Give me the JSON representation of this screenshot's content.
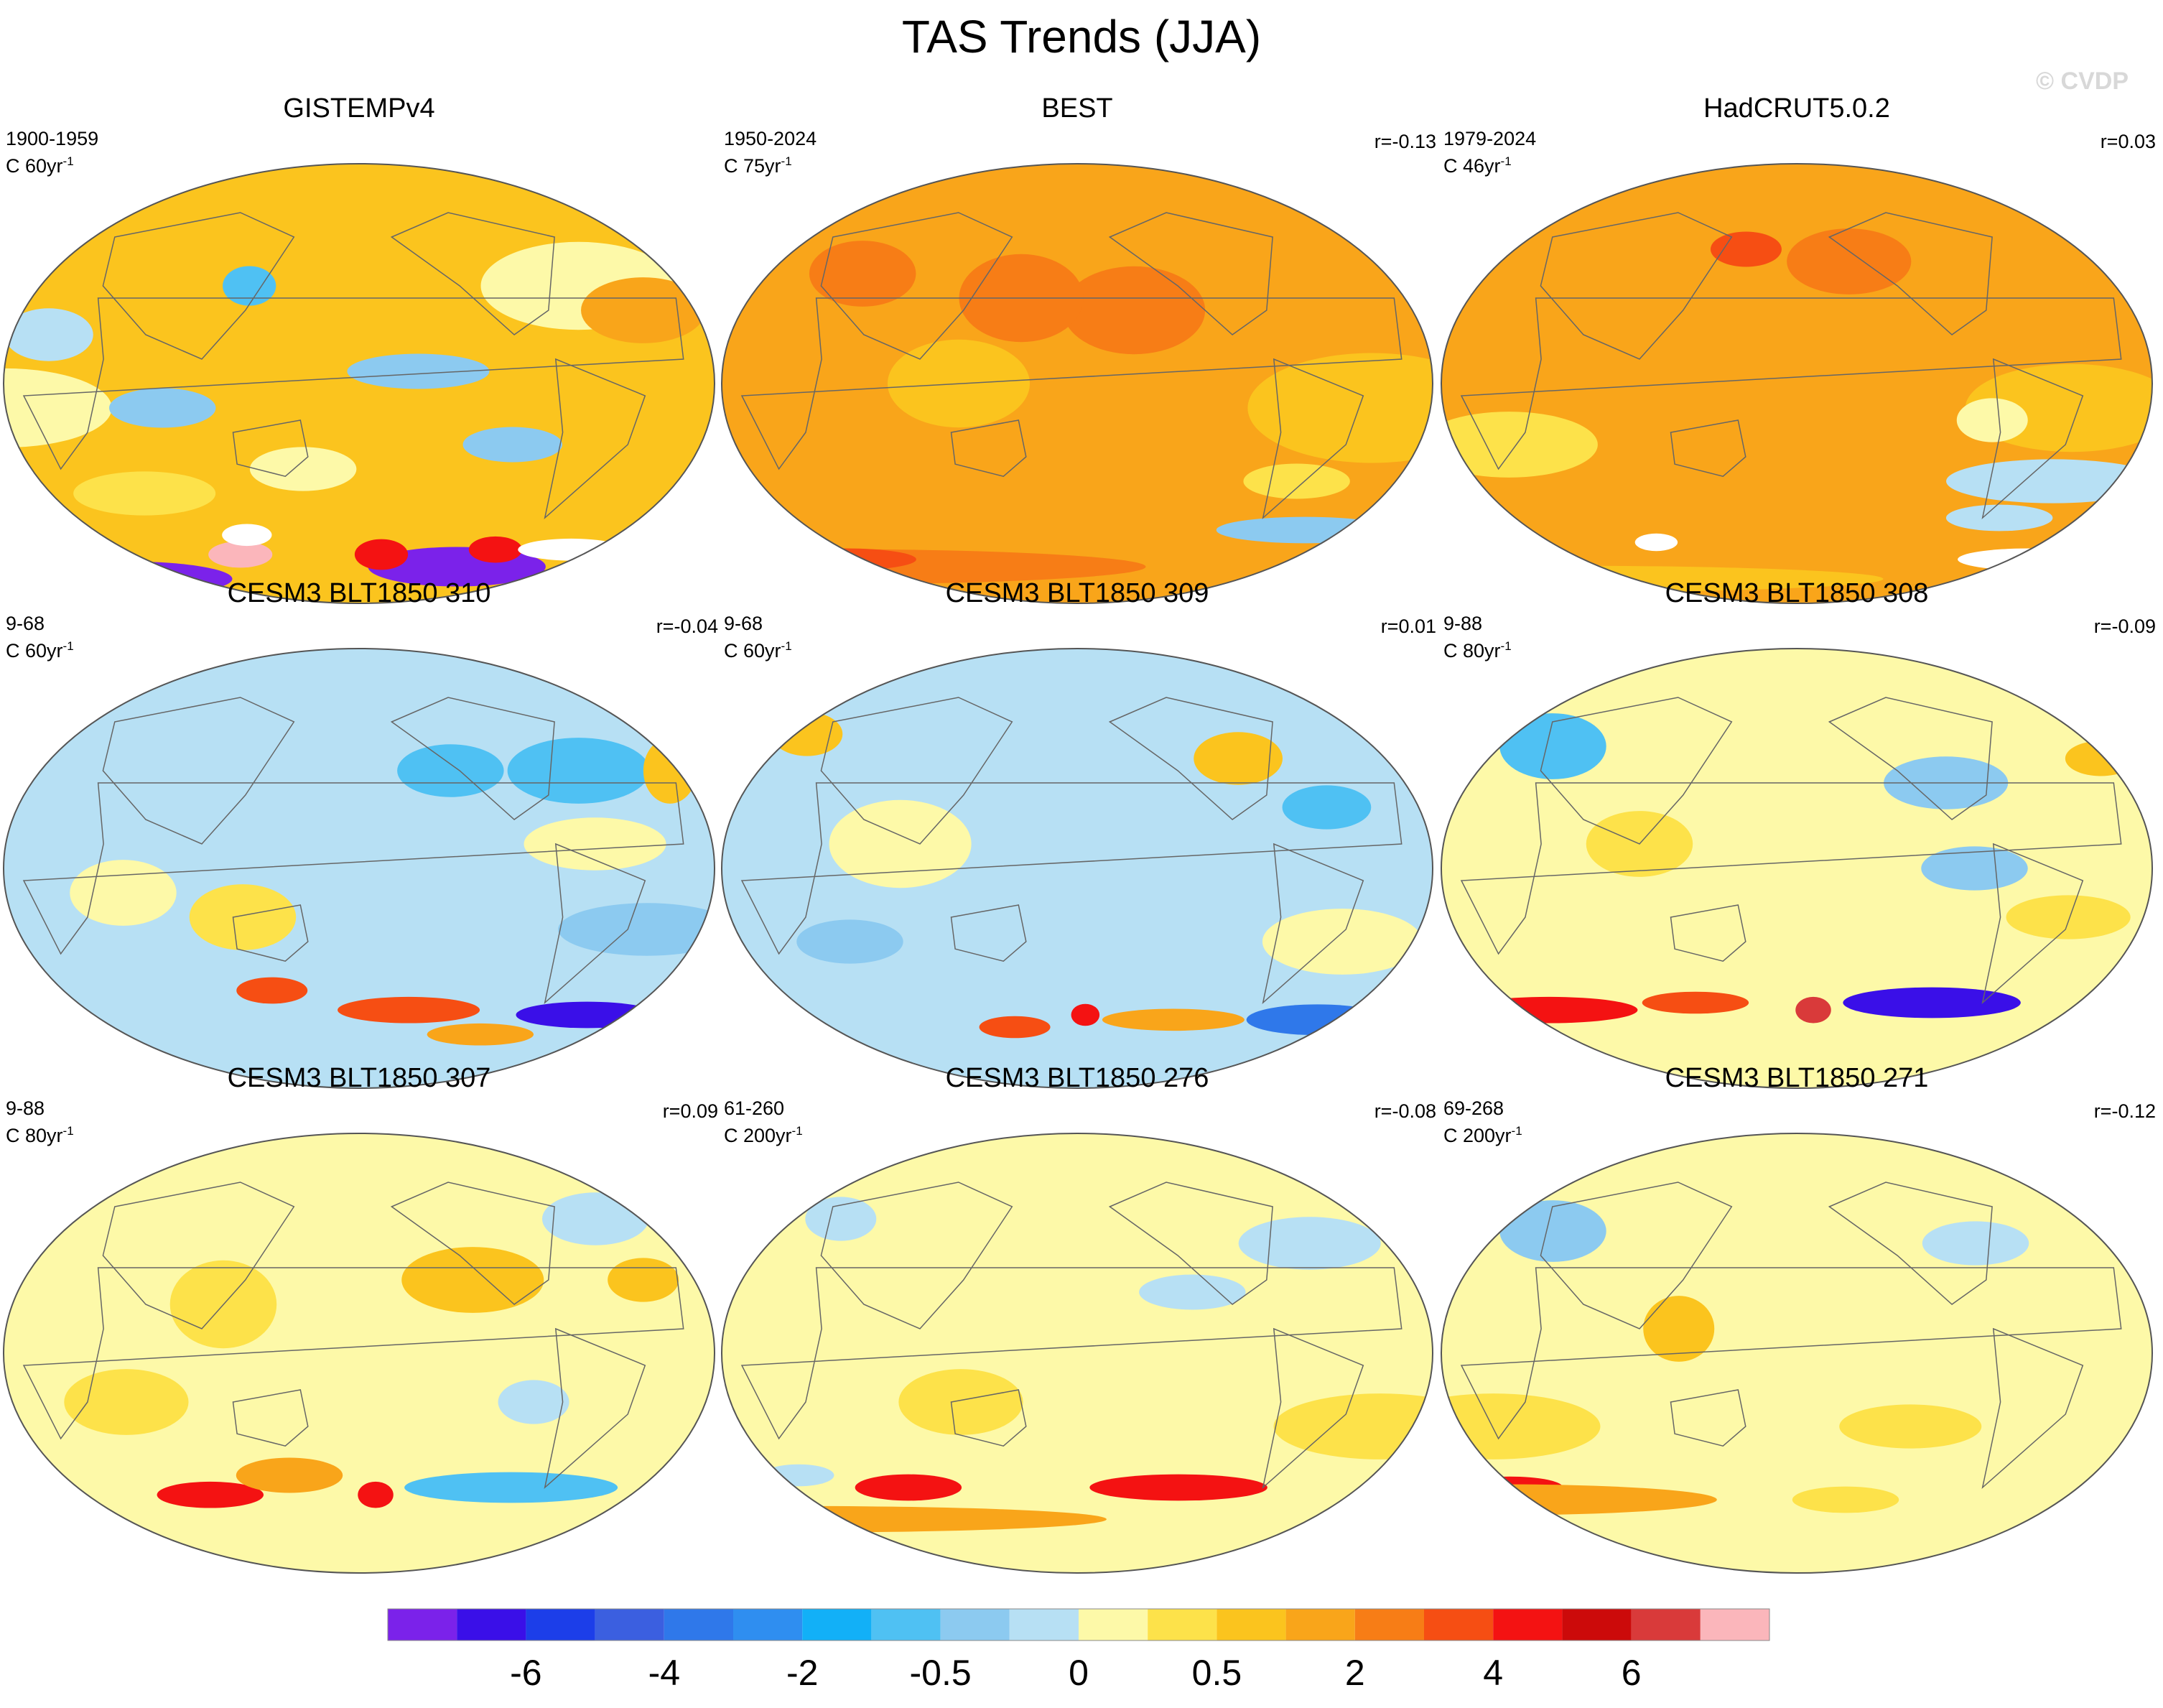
{
  "title": "TAS Trends (JJA)",
  "watermark": "© CVDP",
  "chart_data": {
    "type": "heatmap",
    "variable": "TAS",
    "season": "JJA",
    "projection": "Robinson (Pacific-centered)",
    "colorbar": {
      "colors": [
        "#7b22ea",
        "#3a0fe8",
        "#1c3ee9",
        "#3b5fe0",
        "#2f78ea",
        "#2f8ef0",
        "#12b0f7",
        "#4fc1f3",
        "#8ccaf0",
        "#b7e0f4",
        "#fdf9a8",
        "#fde24a",
        "#fbc41e",
        "#f9a51a",
        "#f77d16",
        "#f64e13",
        "#f41212",
        "#cc0a0a",
        "#d93a3a",
        "#fbb6bb"
      ],
      "labels": [
        "-6",
        "-4",
        "-2",
        "-0.5",
        "0",
        "0.5",
        "2",
        "4",
        "6"
      ]
    },
    "panels": [
      {
        "title": "GISTEMPv4",
        "period": "1900-1959",
        "units": "C 60yr",
        "units_exp": "-1",
        "corr": "",
        "base": "#fbc41e",
        "patches": [
          [
            "#fdf9a8",
            -60,
            40,
            55,
            20
          ],
          [
            "#fdf9a8",
            0,
            -10,
            60,
            18
          ],
          [
            "#8ccaf0",
            80,
            -10,
            30,
            9
          ],
          [
            "#8ccaf0",
            -150,
            5,
            40,
            8
          ],
          [
            "#b7e0f4",
            20,
            20,
            25,
            12
          ],
          [
            "#f9a51a",
            -30,
            30,
            35,
            15
          ],
          [
            "#8ccaf0",
            -100,
            -25,
            28,
            8
          ],
          [
            "#4fc1f3",
            120,
            40,
            15,
            9
          ],
          [
            "#fdf9a8",
            150,
            -35,
            30,
            10
          ],
          [
            "#fde24a",
            60,
            -45,
            40,
            10
          ]
        ],
        "south": [
          [
            "#7b22ea",
            -110,
            -75,
            50,
            9
          ],
          [
            "#7b22ea",
            0,
            -80,
            60,
            8
          ],
          [
            "#f41212",
            -165,
            -70,
            15,
            7
          ],
          [
            "#f41212",
            -90,
            -68,
            15,
            6
          ],
          [
            "#fbb6bb",
            100,
            -70,
            18,
            6
          ],
          [
            "#ffffff",
            -40,
            -68,
            30,
            5
          ],
          [
            "#ffffff",
            110,
            -62,
            14,
            5
          ]
        ]
      },
      {
        "title": "BEST",
        "period": "1950-2024",
        "units": "C 75yr",
        "units_exp": "-1",
        "corr": "r=-0.13",
        "base": "#f9a51a",
        "patches": [
          [
            "#fbc41e",
            -30,
            -10,
            70,
            25
          ],
          [
            "#fbc41e",
            120,
            0,
            40,
            20
          ],
          [
            "#f77d16",
            -150,
            30,
            40,
            20
          ],
          [
            "#f77d16",
            150,
            35,
            35,
            20
          ],
          [
            "#fde24a",
            -60,
            -40,
            30,
            8
          ],
          [
            "#f77d16",
            60,
            45,
            30,
            15
          ]
        ],
        "south": [
          [
            "#8ccaf0",
            -40,
            -60,
            50,
            6
          ],
          [
            "#f77d16",
            0,
            -75,
            180,
            8
          ],
          [
            "#f64e13",
            20,
            -72,
            40,
            5
          ]
        ]
      },
      {
        "title": "HadCRUT5.0.2",
        "period": "1979-2024",
        "units": "C 46yr",
        "units_exp": "-1",
        "corr": "r=0.03",
        "base": "#f9a51a",
        "patches": [
          [
            "#fbc41e",
            -40,
            -10,
            60,
            20
          ],
          [
            "#b7e0f4",
            -40,
            -40,
            60,
            10
          ],
          [
            "#fde24a",
            30,
            -25,
            50,
            15
          ],
          [
            "#f77d16",
            -150,
            50,
            35,
            15
          ],
          [
            "#f64e13",
            150,
            55,
            20,
            8
          ],
          [
            "#fdf9a8",
            -80,
            -15,
            20,
            10
          ],
          [
            "#b7e0f4",
            -60,
            -55,
            30,
            6
          ]
        ],
        "south": [
          [
            "#ffffff",
            -20,
            -72,
            40,
            5
          ],
          [
            "#ffffff",
            90,
            -65,
            12,
            4
          ],
          [
            "#fbc41e",
            0,
            -80,
            180,
            6
          ]
        ]
      },
      {
        "title": "CESM3 BLT1850 310",
        "period": "9-68",
        "units": "C 60yr",
        "units_exp": "-1",
        "corr": "r=-0.04",
        "base": "#b7e0f4",
        "patches": [
          [
            "#8ccaf0",
            -30,
            -25,
            50,
            12
          ],
          [
            "#fdf9a8",
            -60,
            10,
            40,
            12
          ],
          [
            "#4fc1f3",
            -60,
            40,
            40,
            15
          ],
          [
            "#fbc41e",
            -10,
            40,
            15,
            15
          ],
          [
            "#fde24a",
            120,
            -20,
            30,
            15
          ],
          [
            "#4fc1f3",
            -130,
            40,
            30,
            12
          ],
          [
            "#fdf9a8",
            60,
            -10,
            30,
            15
          ]
        ],
        "south": [
          [
            "#3a0fe8",
            -40,
            -60,
            40,
            6
          ],
          [
            "#f64e13",
            -150,
            -58,
            40,
            6
          ],
          [
            "#f9a51a",
            -100,
            -68,
            30,
            5
          ],
          [
            "#f64e13",
            130,
            -50,
            20,
            6
          ]
        ]
      },
      {
        "title": "CESM3 BLT1850 309",
        "period": "9-68",
        "units": "C 60yr",
        "units_exp": "-1",
        "corr": "r=0.01",
        "base": "#b7e0f4",
        "patches": [
          [
            "#fdf9a8",
            -40,
            -30,
            45,
            15
          ],
          [
            "#fbc41e",
            -90,
            45,
            25,
            12
          ],
          [
            "#fbc41e",
            20,
            55,
            20,
            10
          ],
          [
            "#4fc1f3",
            -50,
            25,
            25,
            10
          ],
          [
            "#fdf9a8",
            90,
            10,
            40,
            20
          ],
          [
            "#8ccaf0",
            60,
            -30,
            30,
            10
          ]
        ],
        "south": [
          [
            "#2f78ea",
            -30,
            -62,
            40,
            7
          ],
          [
            "#f9a51a",
            -120,
            -62,
            40,
            5
          ],
          [
            "#f64e13",
            140,
            -65,
            20,
            5
          ],
          [
            "#f41212",
            -175,
            -60,
            8,
            5
          ]
        ]
      },
      {
        "title": "CESM3 BLT1850 308",
        "period": "9-88",
        "units": "C 80yr",
        "units_exp": "-1",
        "corr": "r=-0.09",
        "base": "#fdf9a8",
        "patches": [
          [
            "#4fc1f3",
            40,
            50,
            30,
            15
          ],
          [
            "#fbc41e",
            -10,
            45,
            20,
            8
          ],
          [
            "#8ccaf0",
            -100,
            35,
            35,
            12
          ],
          [
            "#fde24a",
            -40,
            -20,
            35,
            10
          ],
          [
            "#8ccaf0",
            -90,
            0,
            30,
            10
          ],
          [
            "#fde24a",
            100,
            10,
            30,
            15
          ]
        ],
        "south": [
          [
            "#3a0fe8",
            -100,
            -55,
            50,
            7
          ],
          [
            "#f41212",
            30,
            -58,
            50,
            6
          ],
          [
            "#f64e13",
            120,
            -55,
            30,
            5
          ],
          [
            "#d93a3a",
            -170,
            -58,
            10,
            6
          ]
        ]
      },
      {
        "title": "CESM3 BLT1850 307",
        "period": "9-88",
        "units": "C 80yr",
        "units_exp": "-1",
        "corr": "r=0.09",
        "base": "#fdf9a8",
        "patches": [
          [
            "#b7e0f4",
            -40,
            55,
            30,
            12
          ],
          [
            "#fbc41e",
            -120,
            30,
            40,
            15
          ],
          [
            "#fde24a",
            110,
            20,
            30,
            20
          ],
          [
            "#fbc41e",
            -30,
            30,
            20,
            10
          ],
          [
            "#b7e0f4",
            -90,
            -20,
            20,
            10
          ],
          [
            "#fde24a",
            60,
            -20,
            35,
            15
          ]
        ],
        "south": [
          [
            "#4fc1f3",
            -90,
            -55,
            60,
            7
          ],
          [
            "#f41212",
            90,
            -58,
            30,
            6
          ],
          [
            "#f9a51a",
            140,
            -50,
            30,
            8
          ],
          [
            "#f41212",
            -170,
            -58,
            10,
            6
          ]
        ]
      },
      {
        "title": "CESM3 BLT1850 276",
        "period": "61-260",
        "units": "C 200yr",
        "units_exp": "-1",
        "corr": "r=-0.08",
        "base": "#fdf9a8",
        "patches": [
          [
            "#b7e0f4",
            -50,
            45,
            40,
            12
          ],
          [
            "#b7e0f4",
            40,
            55,
            20,
            10
          ],
          [
            "#fde24a",
            -20,
            -30,
            60,
            15
          ],
          [
            "#fde24a",
            120,
            -20,
            35,
            15
          ],
          [
            "#b7e0f4",
            -120,
            25,
            30,
            8
          ]
        ],
        "south": [
          [
            "#f41212",
            -120,
            -55,
            50,
            6
          ],
          [
            "#f41212",
            80,
            -55,
            30,
            6
          ],
          [
            "#b7e0f4",
            20,
            -50,
            20,
            5
          ],
          [
            "#f9a51a",
            0,
            -68,
            170,
            6
          ]
        ]
      },
      {
        "title": "CESM3 BLT1850 271",
        "period": "69-268",
        "units": "C 200yr",
        "units_exp": "-1",
        "corr": "r=-0.12",
        "base": "#fdf9a8",
        "patches": [
          [
            "#8ccaf0",
            40,
            50,
            30,
            14
          ],
          [
            "#b7e0f4",
            -80,
            45,
            30,
            10
          ],
          [
            "#fde24a",
            20,
            -30,
            60,
            15
          ],
          [
            "#fde24a",
            -120,
            -30,
            40,
            10
          ],
          [
            "#fbc41e",
            120,
            10,
            20,
            15
          ]
        ],
        "south": [
          [
            "#f41212",
            10,
            -55,
            30,
            5
          ],
          [
            "#f9a51a",
            0,
            -60,
            120,
            7
          ],
          [
            "#fde24a",
            -150,
            -60,
            30,
            6
          ]
        ]
      }
    ]
  }
}
